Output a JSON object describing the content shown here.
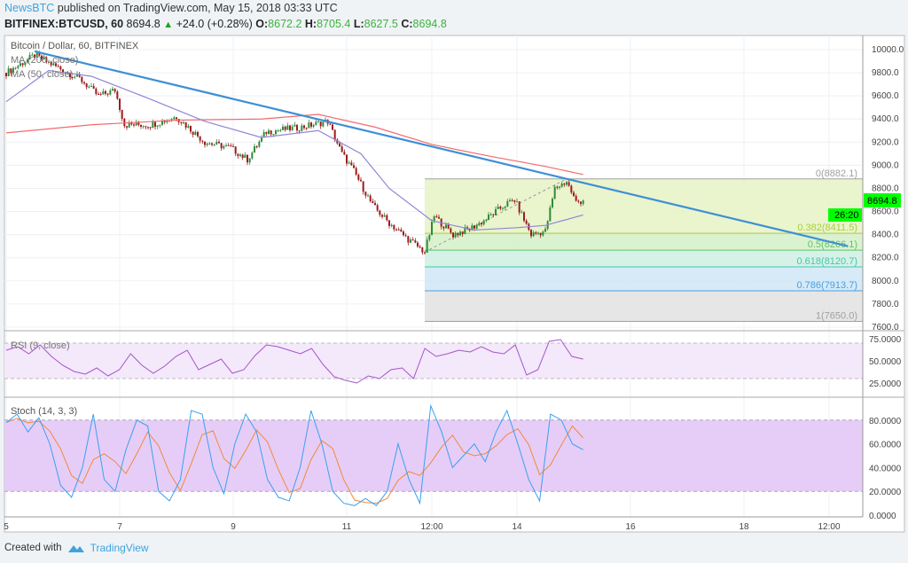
{
  "header": {
    "publisher": "NewsBTC",
    "published_text": "published on TradingView.com, May 15, 2018 03:33 UTC",
    "symbol": "BITFINEX:BTCUSD, 60",
    "last": "8694.8",
    "change": "+24.0 (+0.28%)",
    "o_label": "O:",
    "o": "8672.2",
    "h_label": "H:",
    "h": "8705.4",
    "l_label": "L:",
    "l": "8627.5",
    "c_label": "C:",
    "c": "8694.8"
  },
  "footer": {
    "created_with": "Created with",
    "brand": "TradingView"
  },
  "colors": {
    "up": "#2e8b3a",
    "down": "#9b1c1c",
    "ma200": "#f26b6b",
    "ma50": "#8f86d6",
    "trendline": "#3d8fd6",
    "rsi": "#a255c8",
    "stoch_k": "#3aa0f0",
    "stoch_d": "#f08a3a",
    "price_tag": "#00ff00"
  },
  "chart_data": {
    "type": "candlestick",
    "title": "Bitcoin / Dollar, 60, BITFINEX",
    "indicators": {
      "ma200_label": "MA (200, close)",
      "ma50_label": "MA (50, close)",
      "rsi_label": "RSI (9, close)",
      "stoch_label": "Stoch (14, 3, 3)"
    },
    "price_axis": {
      "ylim": [
        7600,
        10000
      ],
      "ticks": [
        "10000.0",
        "9800.0",
        "9600.0",
        "9400.0",
        "9200.0",
        "9000.0",
        "8800.0",
        "8600.0",
        "8400.0",
        "8200.0",
        "8000.0",
        "7800.0",
        "7600.0"
      ]
    },
    "current_price_tag": "8694.8",
    "countdown_tag": "26:20",
    "x_ticks": [
      {
        "label": "5",
        "t": "05-05 00:00"
      },
      {
        "label": "7",
        "t": "05-07 00:00"
      },
      {
        "label": "9",
        "t": "05-09 00:00"
      },
      {
        "label": "11",
        "t": "05-11 00:00"
      },
      {
        "label": "12:00",
        "t": "05-12 12:00"
      },
      {
        "label": "14",
        "t": "05-14 00:00"
      },
      {
        "label": "16",
        "t": "05-16 00:00"
      },
      {
        "label": "18",
        "t": "05-18 00:00"
      },
      {
        "label": "12:00",
        "t": "05-19 12:00"
      }
    ],
    "close_waypoints": [
      [
        "05-05 00:00",
        9800
      ],
      [
        "05-05 12:00",
        9950
      ],
      [
        "05-06 07:00",
        9750
      ],
      [
        "05-06 15:00",
        9600
      ],
      [
        "05-06 22:00",
        9650
      ],
      [
        "05-07 02:00",
        9350
      ],
      [
        "05-07 13:00",
        9350
      ],
      [
        "05-08 00:00",
        9420
      ],
      [
        "05-08 12:00",
        9200
      ],
      [
        "05-08 23:00",
        9150
      ],
      [
        "05-09 06:00",
        9050
      ],
      [
        "05-09 14:00",
        9290
      ],
      [
        "05-10 05:00",
        9330
      ],
      [
        "05-10 16:00",
        9380
      ],
      [
        "05-10 22:00",
        9100
      ],
      [
        "05-11 03:00",
        8950
      ],
      [
        "05-11 11:00",
        8650
      ],
      [
        "05-11 18:00",
        8500
      ],
      [
        "05-12 02:00",
        8360
      ],
      [
        "05-12 09:00",
        8250
      ],
      [
        "05-12 13:00",
        8560
      ],
      [
        "05-12 21:00",
        8400
      ],
      [
        "05-13 04:00",
        8450
      ],
      [
        "05-13 10:00",
        8520
      ],
      [
        "05-13 19:00",
        8660
      ],
      [
        "05-13 23:00",
        8700
      ],
      [
        "05-14 06:00",
        8400
      ],
      [
        "05-14 12:00",
        8430
      ],
      [
        "05-14 16:00",
        8800
      ],
      [
        "05-14 21:00",
        8860
      ],
      [
        "05-15 01:00",
        8680
      ],
      [
        "05-15 04:00",
        8694.8
      ]
    ],
    "ma200": [
      [
        "05-05 00:00",
        9280
      ],
      [
        "05-06 12:00",
        9350
      ],
      [
        "05-08 00:00",
        9390
      ],
      [
        "05-09 12:00",
        9400
      ],
      [
        "05-10 12:00",
        9440
      ],
      [
        "05-11 12:00",
        9330
      ],
      [
        "05-12 12:00",
        9180
      ],
      [
        "05-13 12:00",
        9080
      ],
      [
        "05-14 12:00",
        8990
      ],
      [
        "05-15 04:00",
        8920
      ]
    ],
    "ma50": [
      [
        "05-05 00:00",
        9550
      ],
      [
        "05-05 18:00",
        9820
      ],
      [
        "05-06 12:00",
        9770
      ],
      [
        "05-07 12:00",
        9580
      ],
      [
        "05-08 12:00",
        9380
      ],
      [
        "05-09 12:00",
        9240
      ],
      [
        "05-10 12:00",
        9300
      ],
      [
        "05-11 06:00",
        9100
      ],
      [
        "05-11 18:00",
        8800
      ],
      [
        "05-12 12:00",
        8520
      ],
      [
        "05-13 06:00",
        8440
      ],
      [
        "05-14 00:00",
        8460
      ],
      [
        "05-14 12:00",
        8480
      ],
      [
        "05-15 04:00",
        8570
      ]
    ],
    "trendline": [
      [
        "05-05 12:00",
        9985
      ],
      [
        "05-19 20:00",
        8300
      ]
    ],
    "fibonacci": {
      "start": "05-12 09:00",
      "low": 7650.0,
      "high": 8882.1,
      "levels": [
        {
          "ratio": "0",
          "price": 8882.1,
          "label": "0(8882.1)",
          "color": "#a0a0a0",
          "fill": "#e6f2c4"
        },
        {
          "ratio": "0.382",
          "price": 8411.5,
          "label": "0.382(8411.5)",
          "color": "#a8cf3c",
          "fill": "#d5f0c8"
        },
        {
          "ratio": "0.5",
          "price": 8266.1,
          "label": "0.5(8266.1)",
          "color": "#5cc46a",
          "fill": "#cff0e4"
        },
        {
          "ratio": "0.618",
          "price": 8120.7,
          "label": "0.618(8120.7)",
          "color": "#45c6a8",
          "fill": "#cfe6f6"
        },
        {
          "ratio": "0.786",
          "price": 7913.7,
          "label": "0.786(7913.7)",
          "color": "#4a9fe0",
          "fill": "#e2e2e2"
        },
        {
          "ratio": "1",
          "price": 7650.0,
          "label": "1(7650.0)",
          "color": "#a0a0a0",
          "fill": null
        }
      ],
      "swing_line": [
        [
          "05-12 09:00",
          8250
        ],
        [
          "05-14 21:00",
          8882.1
        ]
      ]
    },
    "rsi": {
      "ylim": [
        0,
        100
      ],
      "band": [
        30,
        70
      ],
      "ticks": [
        "75.0000",
        "50.0000",
        "25.0000"
      ],
      "start": "05-05 00:00",
      "end": "05-15 04:00",
      "values": [
        62,
        66,
        58,
        68,
        55,
        45,
        38,
        35,
        42,
        33,
        40,
        58,
        45,
        36,
        44,
        55,
        62,
        40,
        46,
        52,
        36,
        40,
        56,
        68,
        66,
        62,
        58,
        64,
        46,
        32,
        28,
        25,
        33,
        30,
        40,
        42,
        30,
        64,
        55,
        58,
        62,
        60,
        66,
        60,
        58,
        68,
        34,
        40,
        72,
        74,
        55,
        52
      ]
    },
    "stoch": {
      "ylim": [
        0,
        100
      ],
      "band": [
        20,
        80
      ],
      "ticks": [
        "80.0000",
        "60.0000",
        "40.0000",
        "20.0000",
        "0.0000"
      ],
      "start": "05-05 00:00",
      "end": "05-15 04:00",
      "k": [
        78,
        85,
        70,
        82,
        60,
        25,
        15,
        40,
        85,
        30,
        20,
        55,
        80,
        75,
        20,
        12,
        30,
        88,
        85,
        40,
        18,
        60,
        85,
        70,
        30,
        15,
        12,
        40,
        88,
        60,
        20,
        10,
        8,
        14,
        8,
        20,
        60,
        30,
        10,
        92,
        70,
        40,
        50,
        60,
        45,
        70,
        88,
        60,
        30,
        12,
        85,
        80,
        60,
        55
      ]
    }
  }
}
